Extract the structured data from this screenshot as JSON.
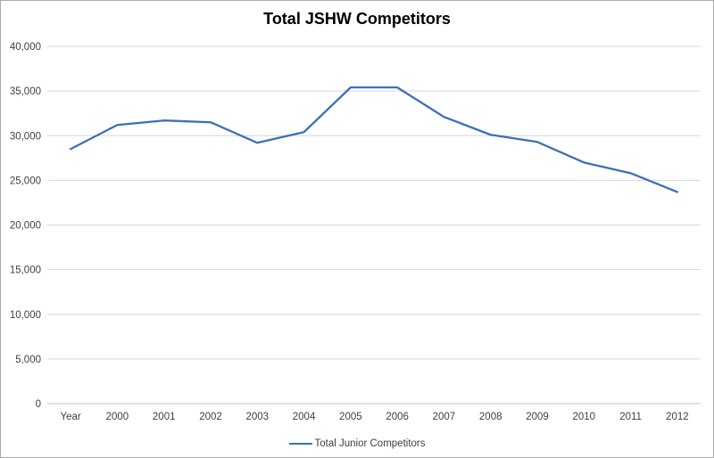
{
  "chart_data": {
    "type": "line",
    "title": "Total JSHW Competitors",
    "categories": [
      "Year",
      "2000",
      "2001",
      "2002",
      "2003",
      "2004",
      "2005",
      "2006",
      "2007",
      "2008",
      "2009",
      "2010",
      "2011",
      "2012"
    ],
    "series": [
      {
        "name": "Total Junior Competitors",
        "values": [
          28500,
          31200,
          31700,
          31500,
          29200,
          30400,
          35400,
          35400,
          32100,
          30100,
          29300,
          27000,
          25800,
          23700
        ]
      }
    ],
    "xlabel": "",
    "ylabel": "",
    "ylim": [
      0,
      40000
    ],
    "ytick_step": 5000,
    "ytick_labels": [
      "0",
      "5,000",
      "10,000",
      "15,000",
      "20,000",
      "25,000",
      "30,000",
      "35,000",
      "40,000"
    ],
    "grid": true,
    "legend_position": "bottom",
    "colors": {
      "line": "#3e6fb8",
      "gridline": "#d6d6d6",
      "axis": "#bfbfbf",
      "tick_text": "#3f3f3f",
      "title_text": "#000000",
      "border": "#ababab",
      "background": "#ffffff"
    }
  }
}
